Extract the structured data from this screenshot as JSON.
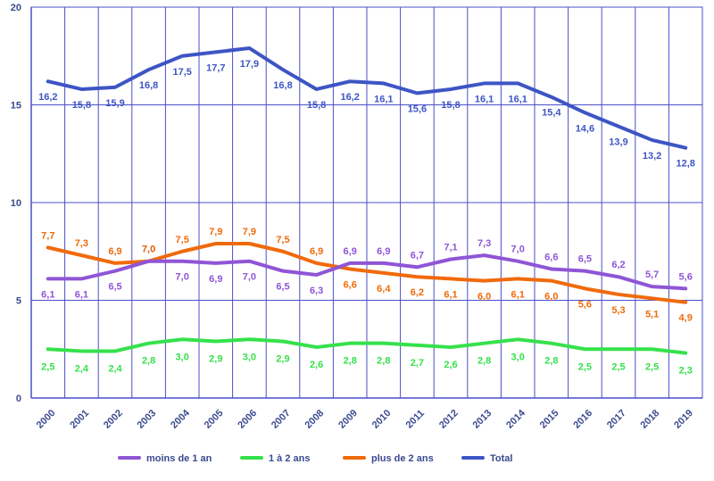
{
  "chart_data": {
    "type": "line",
    "title": "",
    "xlabel": "",
    "ylabel": "",
    "ylim": [
      0,
      20
    ],
    "yticks": [
      "0",
      "5",
      "10",
      "15",
      "20"
    ],
    "grid": true,
    "legend_position": "bottom",
    "categories": [
      "2000",
      "2001",
      "2002",
      "2003",
      "2004",
      "2005",
      "2006",
      "2007",
      "2008",
      "2009",
      "2010",
      "2011",
      "2012",
      "2013",
      "2014",
      "2015",
      "2016",
      "2017",
      "2018",
      "2019"
    ],
    "series": [
      {
        "name": "moins de 1 an",
        "color": "#8f55d6",
        "label_position": "varies",
        "values": [
          6.1,
          6.1,
          6.5,
          7.0,
          7.0,
          6.9,
          7.0,
          6.5,
          6.3,
          6.9,
          6.9,
          6.7,
          7.1,
          7.3,
          7.0,
          6.6,
          6.5,
          6.2,
          5.7,
          5.6
        ],
        "labels": [
          "6,1",
          "6,1",
          "6,5",
          "7,0",
          "7,0",
          "6,9",
          "7,0",
          "6,5",
          "6,3",
          "6,9",
          "6,9",
          "6,7",
          "7,1",
          "7,3",
          "7,0",
          "6,6",
          "6,5",
          "6,2",
          "5,7",
          "5,6"
        ]
      },
      {
        "name": "1 à 2 ans",
        "color": "#35e14b",
        "label_position": "below",
        "values": [
          2.5,
          2.4,
          2.4,
          2.8,
          3.0,
          2.9,
          3.0,
          2.9,
          2.6,
          2.8,
          2.8,
          2.7,
          2.6,
          2.8,
          3.0,
          2.8,
          2.5,
          2.5,
          2.5,
          2.3
        ],
        "labels": [
          "2,5",
          "2,4",
          "2,4",
          "2,8",
          "3,0",
          "2,9",
          "3,0",
          "2,9",
          "2,6",
          "2,8",
          "2,8",
          "2,7",
          "2,6",
          "2,8",
          "3,0",
          "2,8",
          "2,5",
          "2,5",
          "2,5",
          "2,3"
        ]
      },
      {
        "name": "plus de 2 ans",
        "color": "#f06a0b",
        "label_position": "varies",
        "values": [
          7.7,
          7.3,
          6.9,
          7.0,
          7.5,
          7.9,
          7.9,
          7.5,
          6.9,
          6.6,
          6.4,
          6.2,
          6.1,
          6.0,
          6.1,
          6.0,
          5.6,
          5.3,
          5.1,
          4.9
        ],
        "labels": [
          "7,7",
          "7,3",
          "6,9",
          "7,0",
          "7,5",
          "7,9",
          "7,9",
          "7,5",
          "6,9",
          "6,6",
          "6,4",
          "6,2",
          "6,1",
          "6,0",
          "6,1",
          "6,0",
          "5,6",
          "5,3",
          "5,1",
          "4,9"
        ]
      },
      {
        "name": "Total",
        "color": "#3d55c4",
        "label_position": "below",
        "values": [
          16.2,
          15.8,
          15.9,
          16.8,
          17.5,
          17.7,
          17.9,
          16.8,
          15.8,
          16.2,
          16.1,
          15.6,
          15.8,
          16.1,
          16.1,
          15.4,
          14.6,
          13.9,
          13.2,
          12.8
        ],
        "labels": [
          "16,2",
          "15,8",
          "15,9",
          "16,8",
          "17,5",
          "17,7",
          "17,9",
          "16,8",
          "15,8",
          "16,2",
          "16,1",
          "15,6",
          "15,8",
          "16,1",
          "16,1",
          "15,4",
          "14,6",
          "13,9",
          "13,2",
          "12,8"
        ]
      }
    ]
  }
}
